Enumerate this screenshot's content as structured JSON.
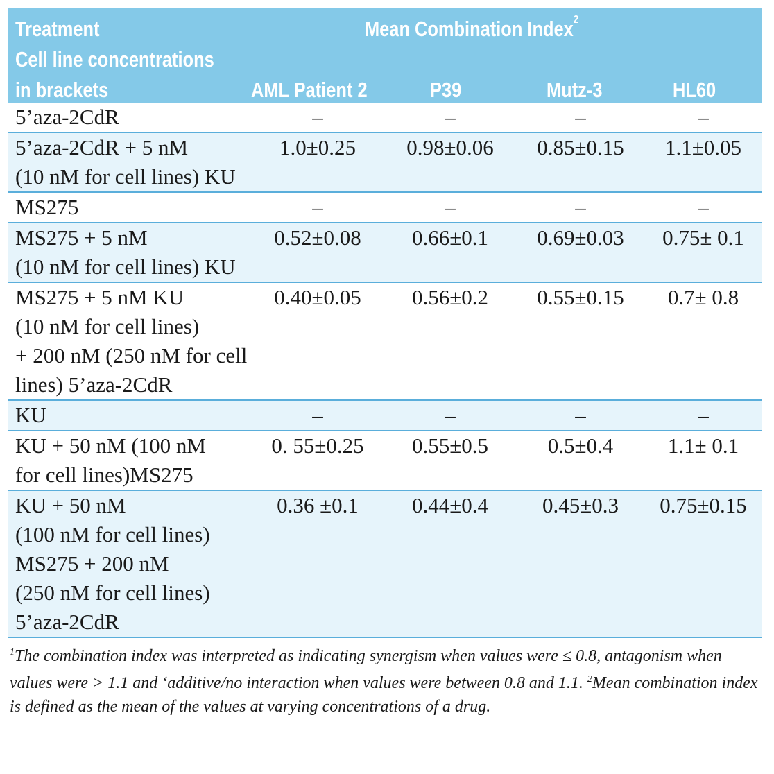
{
  "header": {
    "treatment_line1": "Treatment",
    "treatment_line2": "Cell line concentrations",
    "treatment_line3": "in brackets",
    "group_title": "Mean Combination Index",
    "group_sup": "2",
    "columns": [
      "AML Patient 2",
      "P39",
      "Mutz-3",
      "HL60"
    ]
  },
  "rows": [
    {
      "treatment": [
        "5’aza-2CdR"
      ],
      "values": [
        "–",
        "–",
        "–",
        "–"
      ],
      "shaded": false
    },
    {
      "treatment": [
        "5’aza-2CdR + 5 nM",
        "(10 nM for cell lines) KU"
      ],
      "values": [
        "1.0±0.25",
        "0.98±0.06",
        "0.85±0.15",
        "1.1±0.05"
      ],
      "shaded": true
    },
    {
      "treatment": [
        "MS275"
      ],
      "values": [
        "–",
        "–",
        "–",
        "–"
      ],
      "shaded": false
    },
    {
      "treatment": [
        "MS275 + 5 nM",
        "(10 nM for cell lines) KU"
      ],
      "values": [
        "0.52±0.08",
        "0.66±0.1",
        "0.69±0.03",
        "0.75± 0.1"
      ],
      "shaded": true
    },
    {
      "treatment": [
        "MS275 + 5 nM KU",
        "(10 nM for cell lines)",
        "+ 200 nM (250 nM for cell",
        "lines) 5’aza-2CdR"
      ],
      "values": [
        "0.40±0.05",
        "0.56±0.2",
        "0.55±0.15",
        "0.7± 0.8"
      ],
      "shaded": false
    },
    {
      "treatment": [
        "KU"
      ],
      "values": [
        "–",
        "–",
        "–",
        "–"
      ],
      "shaded": true
    },
    {
      "treatment": [
        "KU + 50 nM (100 nM",
        "for cell lines)MS275"
      ],
      "values": [
        "0. 55±0.25",
        "0.55±0.5",
        "0.5±0.4",
        "1.1± 0.1"
      ],
      "shaded": false
    },
    {
      "treatment": [
        "KU + 50 nM",
        "(100 nM for cell lines)",
        "MS275 + 200 nM",
        "(250 nM for cell lines) 5’aza-2CdR"
      ],
      "values": [
        "0.36 ±0.1",
        "0.44±0.4",
        "0.45±0.3",
        "0.75±0.15"
      ],
      "shaded": true
    }
  ],
  "footnote": {
    "sup1": "1",
    "text1": "The combination index was interpreted as indicating synergism when values were ≤ 0.8, antagonism when values were > 1.1 and ‘additive/no interaction when values were between 0.8 and 1.1. ",
    "sup2": "2",
    "text2": "Mean combination index is defined as the mean of the values at varying concentrations of a drug."
  }
}
